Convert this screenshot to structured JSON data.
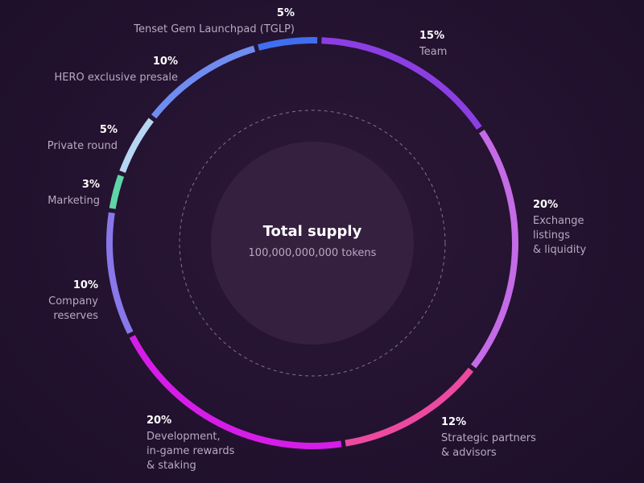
{
  "chart_data": {
    "type": "pie",
    "center": {
      "title": "Total supply",
      "subtitle": "100,000,000,000 tokens"
    },
    "slices": [
      {
        "value": 15,
        "pct_label": "15%",
        "label": [
          "Team"
        ],
        "color": "#8b3fe3"
      },
      {
        "value": 20,
        "pct_label": "20%",
        "label": [
          "Exchange",
          "listings",
          "& liquidity"
        ],
        "color": "#c46be6"
      },
      {
        "value": 12,
        "pct_label": "12%",
        "label": [
          "Strategic partners",
          "& advisors"
        ],
        "color": "#ec4aa0"
      },
      {
        "value": 20,
        "pct_label": "20%",
        "label": [
          "Development,",
          "in-game rewards",
          "& staking"
        ],
        "color": "#d61de8"
      },
      {
        "value": 10,
        "pct_label": "10%",
        "label": [
          "Company",
          "reserves"
        ],
        "color": "#8878ea"
      },
      {
        "value": 3,
        "pct_label": "3%",
        "label": [
          "Marketing"
        ],
        "color": "#5fd6a8"
      },
      {
        "value": 5,
        "pct_label": "5%",
        "label": [
          "Private round"
        ],
        "color": "#b6d6f2"
      },
      {
        "value": 10,
        "pct_label": "10%",
        "label": [
          "HERO exclusive presale"
        ],
        "color": "#6f8cf0"
      },
      {
        "value": 5,
        "pct_label": "5%",
        "label": [
          "Tenset Gem Launchpad (TGLP)"
        ],
        "color": "#3f6ff0"
      }
    ]
  }
}
